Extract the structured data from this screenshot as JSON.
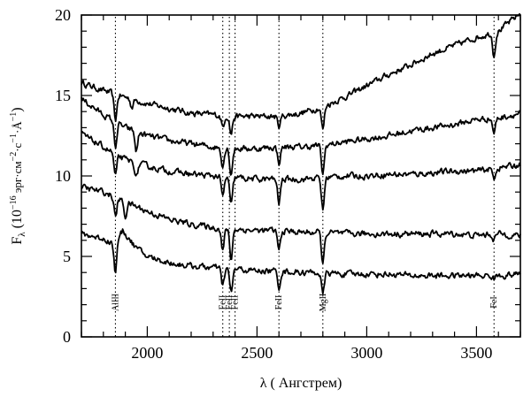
{
  "chart_data": {
    "type": "line",
    "xlabel": "λ ( Ангстрем)",
    "ylabel": "F_λ (10^-16 эрг·см^-2·с^-1·Å^-1)",
    "ylabel_parts": {
      "main": "F",
      "main_sub": "λ",
      "open": " (10",
      "exp": "−16",
      "units": " эрг·см",
      "cm_exp": "−2",
      "mid": "·с",
      "s_exp": "−1",
      "end": "·Å",
      "a_exp": "−1",
      "close": ")"
    },
    "xlim": [
      1700,
      3700
    ],
    "ylim": [
      0,
      20
    ],
    "x_ticks": [
      2000,
      2500,
      3000,
      3500
    ],
    "y_ticks": [
      0,
      5,
      10,
      15,
      20
    ],
    "grid": false,
    "legend": "none",
    "line_markers": [
      {
        "x": 1855,
        "label": "AlIII"
      },
      {
        "x": 2344,
        "label": "FeII"
      },
      {
        "x": 2374,
        "label": "FeII"
      },
      {
        "x": 2400,
        "label": "FeII"
      },
      {
        "x": 2600,
        "label": "FeII"
      },
      {
        "x": 2800,
        "label": "MgII"
      },
      {
        "x": 3580,
        "label": "FeI"
      }
    ],
    "series": [
      {
        "color": "#000000",
        "points": [
          [
            1700,
            15.8
          ],
          [
            1800,
            15.3
          ],
          [
            1900,
            14.9
          ],
          [
            2000,
            14.5
          ],
          [
            2100,
            14.2
          ],
          [
            2200,
            13.9
          ],
          [
            2300,
            13.8
          ],
          [
            2400,
            13.7
          ],
          [
            2500,
            13.7
          ],
          [
            2600,
            13.7
          ],
          [
            2700,
            13.9
          ],
          [
            2800,
            14.3
          ],
          [
            2900,
            14.9
          ],
          [
            3000,
            15.6
          ],
          [
            3100,
            16.3
          ],
          [
            3200,
            16.9
          ],
          [
            3300,
            17.6
          ],
          [
            3400,
            18.1
          ],
          [
            3500,
            18.6
          ],
          [
            3600,
            19.0
          ],
          [
            3700,
            20.1
          ]
        ],
        "absorption": [
          [
            1855,
            1.6
          ],
          [
            1930,
            0.5
          ],
          [
            2344,
            0.7
          ],
          [
            2382,
            1.1
          ],
          [
            2600,
            0.6
          ],
          [
            2800,
            1.4
          ],
          [
            3580,
            1.4
          ]
        ]
      },
      {
        "color": "#000000",
        "points": [
          [
            1700,
            14.8
          ],
          [
            1800,
            13.8
          ],
          [
            1900,
            13.0
          ],
          [
            2000,
            12.5
          ],
          [
            2100,
            12.2
          ],
          [
            2200,
            12.0
          ],
          [
            2300,
            11.8
          ],
          [
            2400,
            11.7
          ],
          [
            2500,
            11.7
          ],
          [
            2600,
            11.8
          ],
          [
            2700,
            11.8
          ],
          [
            2800,
            11.9
          ],
          [
            2900,
            12.1
          ],
          [
            3000,
            12.3
          ],
          [
            3100,
            12.5
          ],
          [
            3200,
            12.8
          ],
          [
            3300,
            13.0
          ],
          [
            3400,
            13.2
          ],
          [
            3500,
            13.5
          ],
          [
            3600,
            13.6
          ],
          [
            3700,
            13.9
          ]
        ],
        "absorption": [
          [
            1855,
            1.5
          ],
          [
            1950,
            1.2
          ],
          [
            2344,
            1.1
          ],
          [
            2382,
            1.6
          ],
          [
            2600,
            1.0
          ],
          [
            2800,
            1.8
          ],
          [
            3580,
            0.9
          ]
        ]
      },
      {
        "color": "#000000",
        "points": [
          [
            1700,
            12.6
          ],
          [
            1800,
            11.8
          ],
          [
            1900,
            11.0
          ],
          [
            2000,
            10.6
          ],
          [
            2100,
            10.3
          ],
          [
            2200,
            10.1
          ],
          [
            2300,
            10.0
          ],
          [
            2400,
            9.9
          ],
          [
            2500,
            9.8
          ],
          [
            2600,
            9.8
          ],
          [
            2700,
            9.8
          ],
          [
            2800,
            9.9
          ],
          [
            2900,
            10.0
          ],
          [
            3000,
            10.0
          ],
          [
            3100,
            10.1
          ],
          [
            3200,
            10.1
          ],
          [
            3300,
            10.2
          ],
          [
            3400,
            10.3
          ],
          [
            3500,
            10.3
          ],
          [
            3600,
            10.5
          ],
          [
            3700,
            10.7
          ]
        ],
        "absorption": [
          [
            1855,
            1.4
          ],
          [
            1950,
            0.9
          ],
          [
            2344,
            1.3
          ],
          [
            2382,
            1.8
          ],
          [
            2600,
            1.5
          ],
          [
            2800,
            2.0
          ],
          [
            3580,
            0.6
          ]
        ]
      },
      {
        "color": "#000000",
        "points": [
          [
            1700,
            9.3
          ],
          [
            1800,
            9.0
          ],
          [
            1900,
            8.4
          ],
          [
            2000,
            7.8
          ],
          [
            2100,
            7.3
          ],
          [
            2200,
            7.0
          ],
          [
            2300,
            6.8
          ],
          [
            2400,
            6.7
          ],
          [
            2500,
            6.6
          ],
          [
            2600,
            6.6
          ],
          [
            2700,
            6.5
          ],
          [
            2800,
            6.5
          ],
          [
            2900,
            6.4
          ],
          [
            3000,
            6.4
          ],
          [
            3100,
            6.4
          ],
          [
            3200,
            6.4
          ],
          [
            3300,
            6.4
          ],
          [
            3400,
            6.4
          ],
          [
            3500,
            6.3
          ],
          [
            3600,
            6.4
          ],
          [
            3700,
            6.3
          ]
        ],
        "absorption": [
          [
            1855,
            1.2
          ],
          [
            1900,
            0.9
          ],
          [
            2344,
            1.4
          ],
          [
            2382,
            1.9
          ],
          [
            2600,
            1.2
          ],
          [
            2800,
            2.0
          ],
          [
            3580,
            0.3
          ]
        ]
      },
      {
        "color": "#000000",
        "points": [
          [
            1700,
            6.4
          ],
          [
            1800,
            6.1
          ],
          [
            1850,
            5.8
          ],
          [
            1890,
            6.6
          ],
          [
            1950,
            5.5
          ],
          [
            2000,
            5.0
          ],
          [
            2100,
            4.6
          ],
          [
            2200,
            4.4
          ],
          [
            2300,
            4.3
          ],
          [
            2400,
            4.2
          ],
          [
            2500,
            4.1
          ],
          [
            2600,
            4.1
          ],
          [
            2700,
            4.0
          ],
          [
            2800,
            4.0
          ],
          [
            2900,
            3.9
          ],
          [
            3000,
            3.9
          ],
          [
            3100,
            3.9
          ],
          [
            3200,
            3.8
          ],
          [
            3300,
            3.8
          ],
          [
            3400,
            3.8
          ],
          [
            3500,
            3.8
          ],
          [
            3600,
            3.8
          ],
          [
            3700,
            3.9
          ]
        ],
        "absorption": [
          [
            1855,
            1.8
          ],
          [
            2344,
            1.1
          ],
          [
            2382,
            1.5
          ],
          [
            2600,
            1.0
          ],
          [
            2800,
            1.4
          ],
          [
            3580,
            0.2
          ]
        ]
      }
    ]
  }
}
